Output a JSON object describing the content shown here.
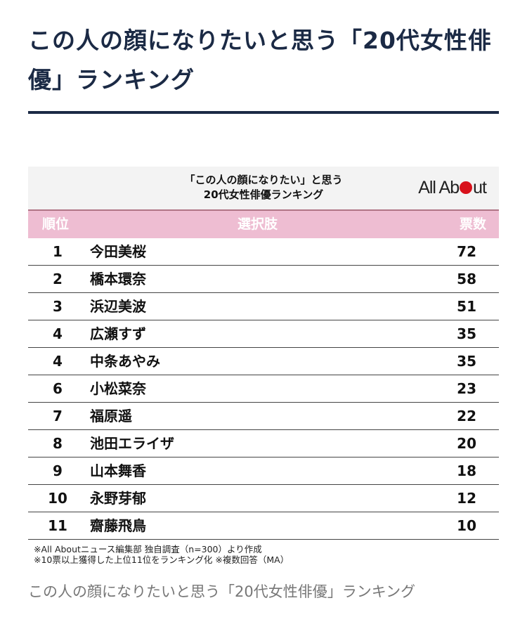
{
  "title": "この人の顔になりたいと思う「20代女性俳優」ランキング",
  "card": {
    "header_line1": "「この人の顔になりたい」と思う",
    "header_line2": "20代女性俳優ランキング",
    "logo": "All About",
    "logo_color": "#d8111b",
    "columns": {
      "rank": "順位",
      "choice": "選択肢",
      "votes": "票数"
    },
    "rows": [
      {
        "rank": "1",
        "name": "今田美桜",
        "votes": "72"
      },
      {
        "rank": "2",
        "name": "橋本環奈",
        "votes": "58"
      },
      {
        "rank": "3",
        "name": "浜辺美波",
        "votes": "51"
      },
      {
        "rank": "4",
        "name": "広瀬すず",
        "votes": "35"
      },
      {
        "rank": "4",
        "name": "中条あやみ",
        "votes": "35"
      },
      {
        "rank": "6",
        "name": "小松菜奈",
        "votes": "23"
      },
      {
        "rank": "7",
        "name": "福原遥",
        "votes": "22"
      },
      {
        "rank": "8",
        "name": "池田エライザ",
        "votes": "20"
      },
      {
        "rank": "9",
        "name": "山本舞香",
        "votes": "18"
      },
      {
        "rank": "10",
        "name": "永野芽郁",
        "votes": "12"
      },
      {
        "rank": "11",
        "name": "齋藤飛鳥",
        "votes": "10"
      }
    ],
    "note1": "※All Aboutニュース編集部 独自調査（n=300）より作成",
    "note2": "※10票以上獲得した上位11位をランキング化 ※複数回答（MA）"
  },
  "caption": "この人の顔になりたいと思う「20代女性俳優」ランキング"
}
